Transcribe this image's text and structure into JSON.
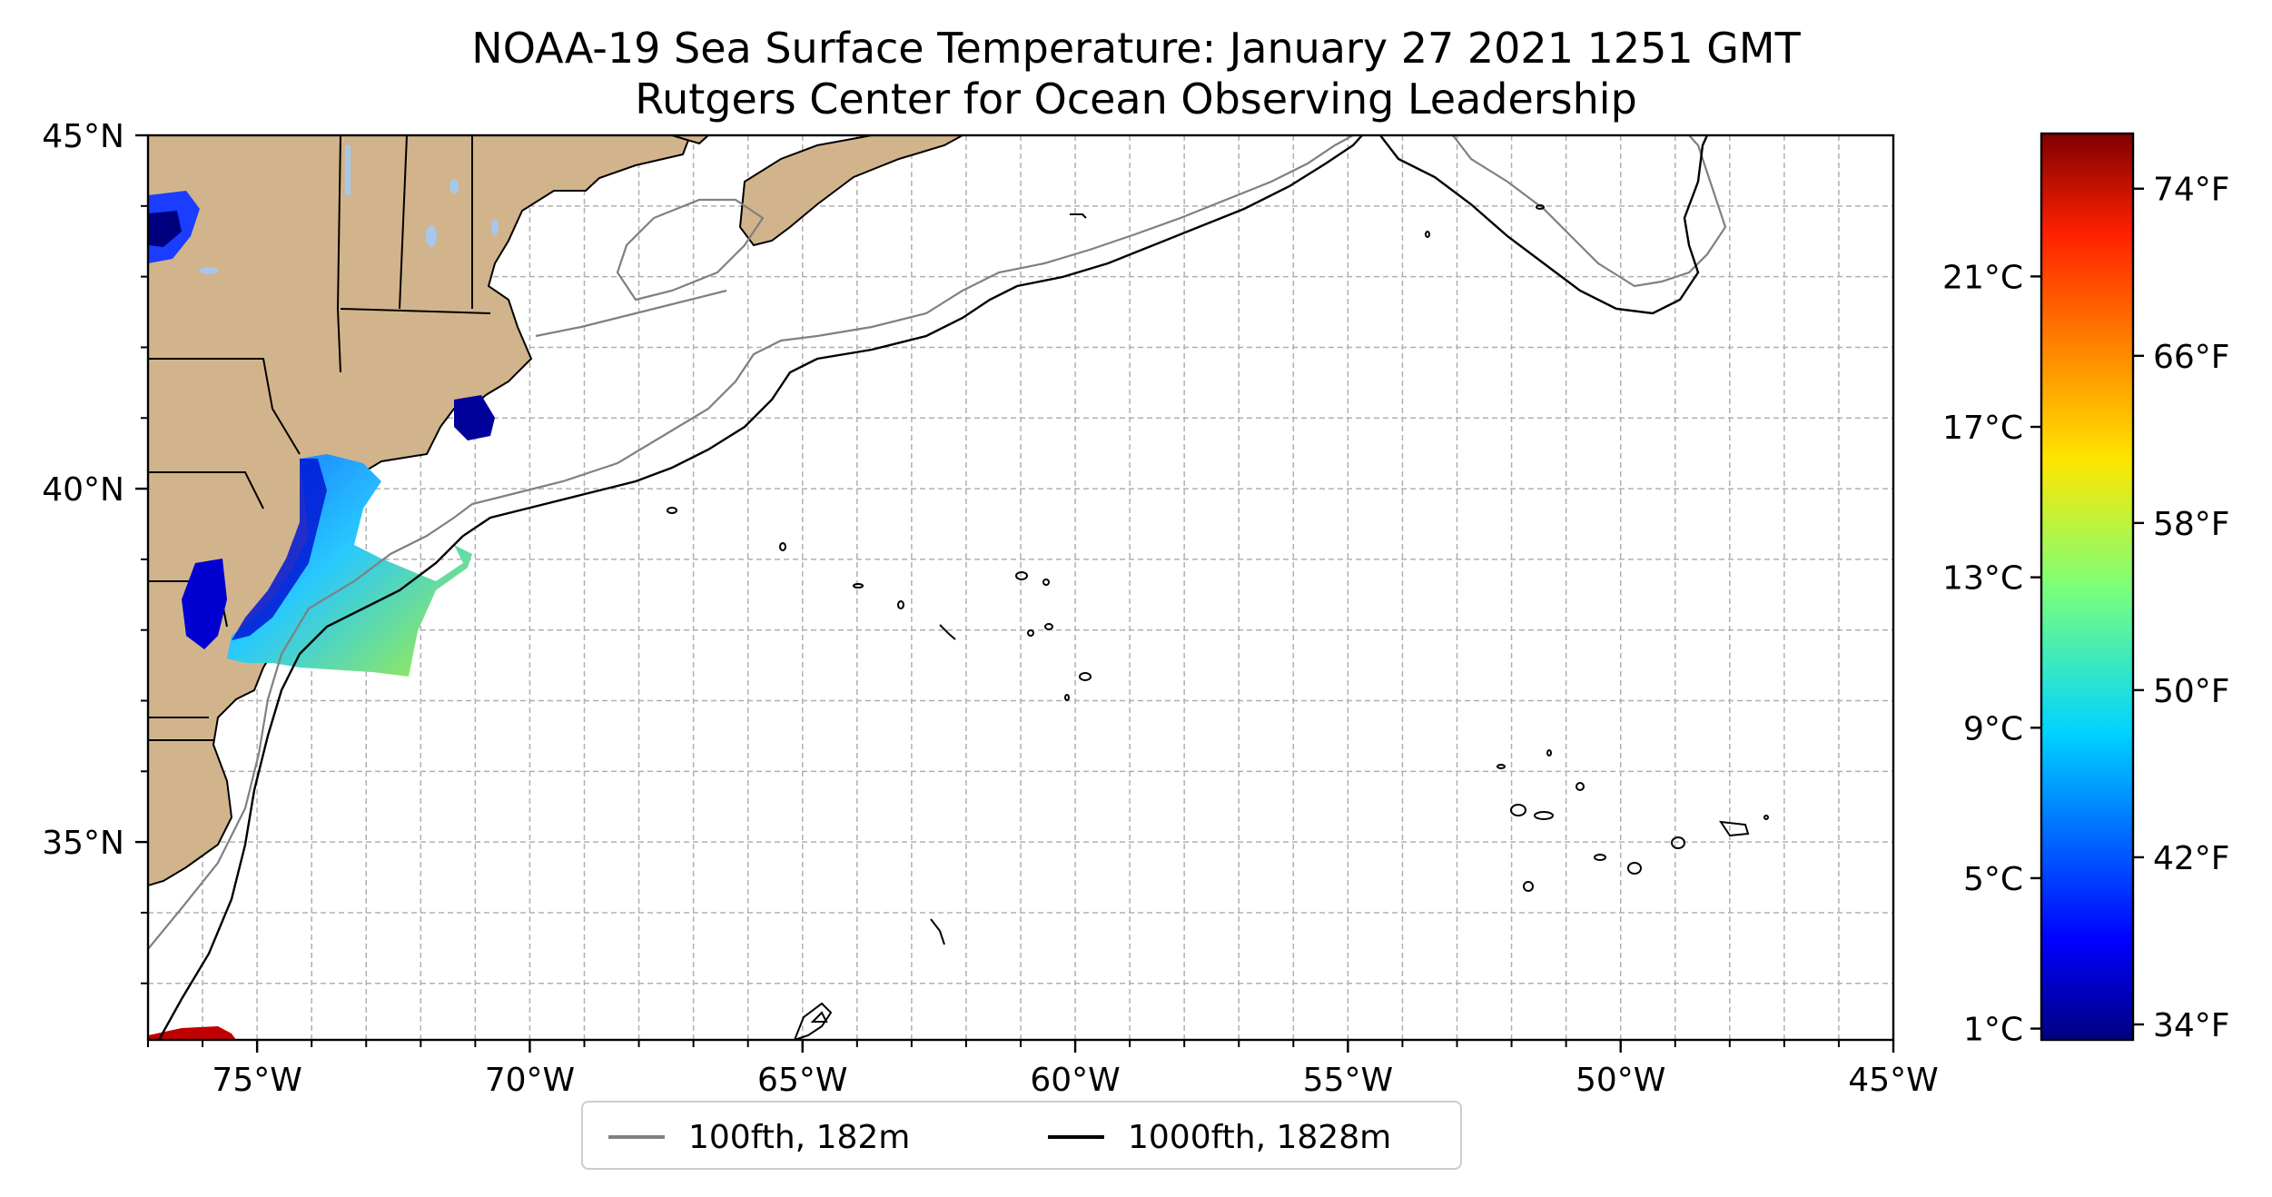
{
  "title": "NOAA-19 Sea Surface Temperature: January 27 2021 1251 GMT",
  "subtitle": "Rutgers Center for Ocean Observing Leadership",
  "map": {
    "extent": {
      "lon_min": -77,
      "lon_max": -45,
      "lat_min": 32.2,
      "lat_max": 45
    },
    "lon_ticks": [
      {
        "value": -75,
        "label": "75°W"
      },
      {
        "value": -70,
        "label": "70°W"
      },
      {
        "value": -65,
        "label": "65°W"
      },
      {
        "value": -60,
        "label": "60°W"
      },
      {
        "value": -55,
        "label": "55°W"
      },
      {
        "value": -50,
        "label": "50°W"
      },
      {
        "value": -45,
        "label": "45°W"
      }
    ],
    "lat_ticks": [
      {
        "value": 45,
        "label": "45°N"
      },
      {
        "value": 40,
        "label": "40°N"
      },
      {
        "value": 35,
        "label": "35°N"
      }
    ],
    "grid": true,
    "grid_minor_step_deg": 1,
    "colors": {
      "land": "#d2b48c",
      "lakes": "#a6c8ec",
      "contour_100fth": "#808080",
      "contour_1000fth": "#000000",
      "grid": "#b0b0b0"
    }
  },
  "legend": {
    "placement": "bottom-center",
    "items": [
      {
        "label": "100fth, 182m",
        "color": "#808080"
      },
      {
        "label": "1000fth, 1828m",
        "color": "#000000"
      }
    ]
  },
  "colorbar": {
    "colormap": "jet",
    "range_celsius": [
      0.7,
      24.8
    ],
    "celsius_ticks": [
      {
        "value": 1,
        "label": "1°C"
      },
      {
        "value": 5,
        "label": "5°C"
      },
      {
        "value": 9,
        "label": "9°C"
      },
      {
        "value": 13,
        "label": "13°C"
      },
      {
        "value": 17,
        "label": "17°C"
      },
      {
        "value": 21,
        "label": "21°C"
      }
    ],
    "fahrenheit_ticks": [
      {
        "value": 34,
        "label": "34°F"
      },
      {
        "value": 42,
        "label": "42°F"
      },
      {
        "value": 50,
        "label": "50°F"
      },
      {
        "value": 58,
        "label": "58°F"
      },
      {
        "value": 66,
        "label": "66°F"
      },
      {
        "value": 74,
        "label": "74°F"
      }
    ]
  }
}
